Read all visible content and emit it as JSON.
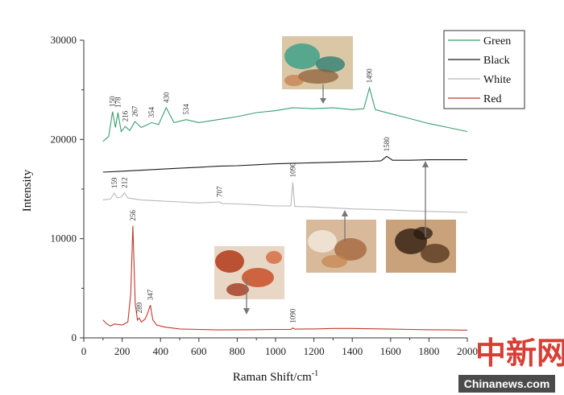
{
  "chart_data": {
    "type": "line",
    "xlabel": "Raman Shift/cm",
    "xlabel_sup": "-1",
    "ylabel": "Intensity",
    "xlim": [
      0,
      2000
    ],
    "ylim": [
      0,
      30000
    ],
    "x_ticks": [
      "0",
      "200",
      "400",
      "600",
      "800",
      "1000",
      "1200",
      "1400",
      "1600",
      "1800",
      "2000"
    ],
    "y_ticks": [
      "0",
      "10000",
      "20000",
      "30000"
    ],
    "legend": [
      {
        "name": "Green",
        "color": "#3a9e6e"
      },
      {
        "name": "Black",
        "color": "#1a1a1a"
      },
      {
        "name": "White",
        "color": "#b9b9b9"
      },
      {
        "name": "Red",
        "color": "#c0392b"
      }
    ],
    "series": [
      {
        "name": "Green",
        "color": "#3a9e6e",
        "x": [
          100,
          130,
          150,
          165,
          178,
          195,
          216,
          240,
          267,
          300,
          354,
          390,
          430,
          470,
          534,
          600,
          700,
          800,
          900,
          1000,
          1090,
          1200,
          1300,
          1400,
          1460,
          1490,
          1520,
          1600,
          1700,
          1800,
          1900,
          2000
        ],
        "y": [
          19800,
          20300,
          22800,
          21200,
          22700,
          20800,
          21300,
          20900,
          21800,
          21200,
          21700,
          21500,
          23200,
          21700,
          22000,
          21700,
          22000,
          22300,
          22700,
          22900,
          23200,
          23100,
          23200,
          23000,
          23100,
          25200,
          23000,
          22600,
          22100,
          21600,
          21200,
          20800
        ]
      },
      {
        "name": "Black",
        "color": "#1a1a1a",
        "x": [
          100,
          200,
          300,
          400,
          500,
          600,
          700,
          800,
          900,
          1000,
          1100,
          1200,
          1300,
          1400,
          1500,
          1550,
          1580,
          1610,
          1700,
          1800,
          1900,
          2000
        ],
        "y": [
          16700,
          16800,
          16900,
          17000,
          17100,
          17200,
          17300,
          17350,
          17450,
          17550,
          17600,
          17650,
          17700,
          17750,
          17800,
          17850,
          18300,
          17900,
          17900,
          17950,
          17950,
          17950
        ]
      },
      {
        "name": "White",
        "color": "#b9b9b9",
        "x": [
          100,
          140,
          159,
          175,
          195,
          212,
          230,
          300,
          400,
          500,
          600,
          707,
          720,
          800,
          900,
          1000,
          1080,
          1090,
          1100,
          1200,
          1300,
          1400,
          1500,
          1600,
          1700,
          1800,
          1900,
          2000
        ],
        "y": [
          13900,
          14000,
          14600,
          14100,
          14200,
          14600,
          14100,
          13900,
          13800,
          13700,
          13600,
          13700,
          13550,
          13500,
          13400,
          13300,
          13300,
          15700,
          13250,
          13200,
          13100,
          13000,
          12950,
          12900,
          12800,
          12750,
          12700,
          12650
        ]
      },
      {
        "name": "Red",
        "color": "#c0392b",
        "x": [
          100,
          120,
          140,
          160,
          200,
          230,
          245,
          256,
          268,
          280,
          289,
          300,
          320,
          335,
          347,
          360,
          380,
          420,
          500,
          600,
          700,
          800,
          900,
          1000,
          1080,
          1090,
          1100,
          1200,
          1300,
          1400,
          1500,
          1600,
          1700,
          1800,
          1900,
          2000
        ],
        "y": [
          1800,
          1400,
          1200,
          1400,
          1300,
          1600,
          4500,
          11300,
          3500,
          1800,
          2000,
          1600,
          1900,
          2600,
          3300,
          1800,
          1300,
          1100,
          900,
          850,
          800,
          820,
          830,
          850,
          860,
          1000,
          880,
          900,
          950,
          950,
          920,
          880,
          850,
          820,
          800,
          780
        ]
      }
    ],
    "peak_labels": [
      {
        "series": "Green",
        "x": 150,
        "label": "150"
      },
      {
        "series": "Green",
        "x": 178,
        "label": "178"
      },
      {
        "series": "Green",
        "x": 216,
        "label": "216"
      },
      {
        "series": "Green",
        "x": 267,
        "label": "267"
      },
      {
        "series": "Green",
        "x": 354,
        "label": "354"
      },
      {
        "series": "Green",
        "x": 430,
        "label": "430"
      },
      {
        "series": "Green",
        "x": 534,
        "label": "534"
      },
      {
        "series": "Green",
        "x": 1490,
        "label": "1490"
      },
      {
        "series": "Black",
        "x": 1580,
        "label": "1580"
      },
      {
        "series": "White",
        "x": 159,
        "label": "159"
      },
      {
        "series": "White",
        "x": 212,
        "label": "212"
      },
      {
        "series": "White",
        "x": 707,
        "label": "707"
      },
      {
        "series": "White",
        "x": 1090,
        "label": "1090"
      },
      {
        "series": "Red",
        "x": 256,
        "label": "256"
      },
      {
        "series": "Red",
        "x": 289,
        "label": "289"
      },
      {
        "series": "Red",
        "x": 347,
        "label": "347"
      },
      {
        "series": "Red",
        "x": 1090,
        "label": "1090"
      }
    ]
  },
  "watermark": {
    "chinese": "中新网",
    "english": "Chinanews.com"
  }
}
